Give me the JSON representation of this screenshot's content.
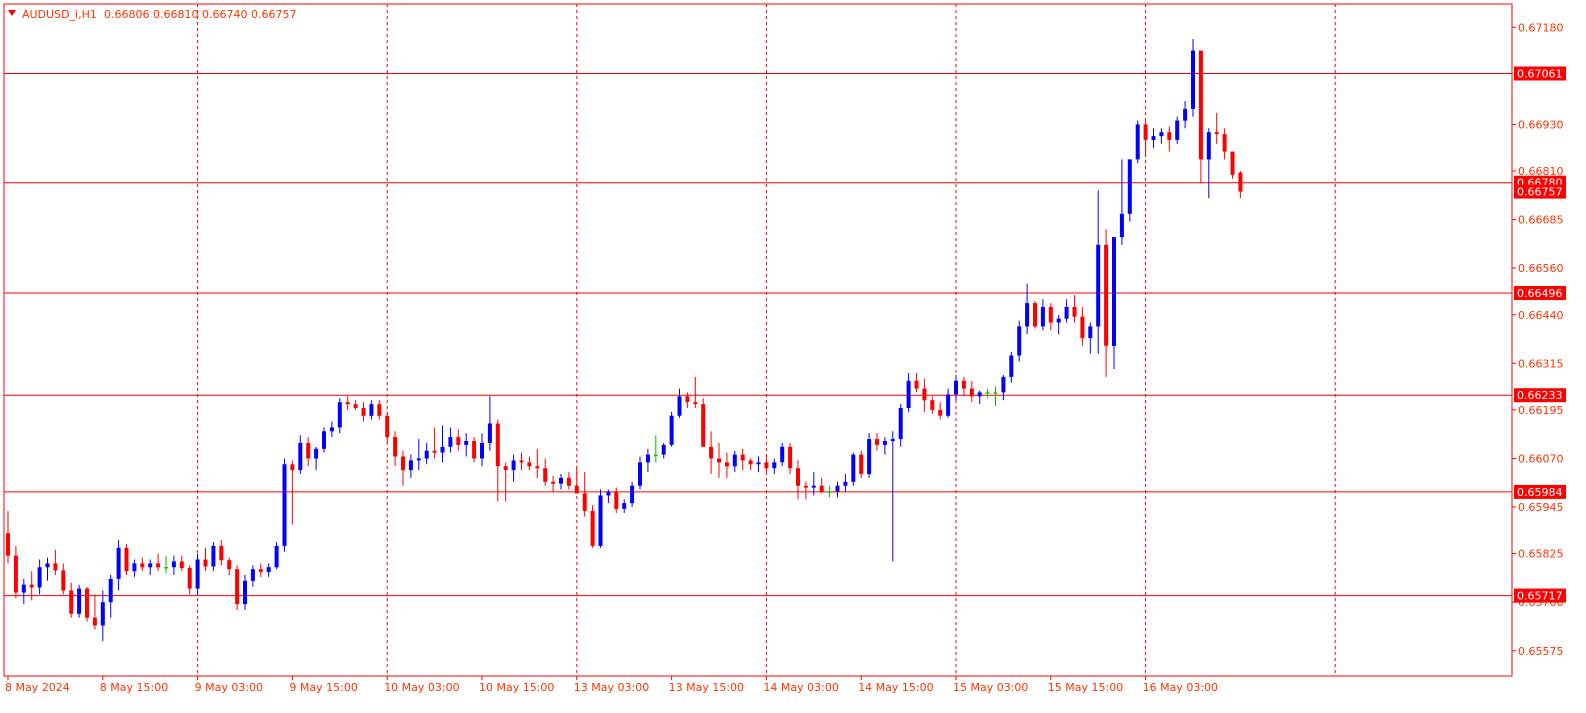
{
  "header": {
    "symbol": "AUDUSD_i,H1",
    "ohlc": "0.66806 0.66810 0.66740 0.66757"
  },
  "colors": {
    "background": "#ffffff",
    "frame": "#ff0000",
    "grid": "#ff0000",
    "level_line": "#ff0000",
    "level_label_bg": "#ff0000",
    "level_label_text": "#ffffff",
    "bull": "#0000ff",
    "bear": "#ff0000",
    "neutral": "#00c000",
    "axis_text": "#ff3300"
  },
  "chart_data": {
    "type": "candlestick",
    "timeframe": "H1",
    "y_range": [
      0.6551,
      0.6724
    ],
    "y_ticks": [
      "0.67180",
      "0.66930",
      "0.66810",
      "0.66685",
      "0.66560",
      "0.66440",
      "0.66315",
      "0.66195",
      "0.66070",
      "0.65945",
      "0.65825",
      "0.65700",
      "0.65575"
    ],
    "x_labels": [
      "8 May 2024",
      "8 May 15:00",
      "9 May 03:00",
      "9 May 15:00",
      "10 May 03:00",
      "10 May 15:00",
      "13 May 03:00",
      "13 May 15:00",
      "14 May 03:00",
      "14 May 15:00",
      "15 May 03:00",
      "15 May 15:00",
      "16 May 03:00"
    ],
    "vertical_grid": "dashed, every 24 bars",
    "horizontal_levels": [
      "0.67061",
      "0.66780",
      "0.66496",
      "0.66233",
      "0.65984",
      "0.65717"
    ],
    "current_price": "0.66757",
    "candles": [
      {
        "o": 0.65878,
        "h": 0.65935,
        "l": 0.658,
        "c": 0.6582
      },
      {
        "o": 0.6582,
        "h": 0.65845,
        "l": 0.6571,
        "c": 0.65725
      },
      {
        "o": 0.65725,
        "h": 0.6576,
        "l": 0.65695,
        "c": 0.65745
      },
      {
        "o": 0.65745,
        "h": 0.6578,
        "l": 0.65705,
        "c": 0.65738
      },
      {
        "o": 0.65738,
        "h": 0.6581,
        "l": 0.6572,
        "c": 0.6579
      },
      {
        "o": 0.6579,
        "h": 0.65815,
        "l": 0.65755,
        "c": 0.658
      },
      {
        "o": 0.658,
        "h": 0.65835,
        "l": 0.6577,
        "c": 0.65782
      },
      {
        "o": 0.65782,
        "h": 0.658,
        "l": 0.6572,
        "c": 0.6573
      },
      {
        "o": 0.6573,
        "h": 0.6575,
        "l": 0.6566,
        "c": 0.6567
      },
      {
        "o": 0.6567,
        "h": 0.65745,
        "l": 0.6566,
        "c": 0.65735
      },
      {
        "o": 0.65735,
        "h": 0.6574,
        "l": 0.6565,
        "c": 0.6566
      },
      {
        "o": 0.6566,
        "h": 0.6572,
        "l": 0.6563,
        "c": 0.6564
      },
      {
        "o": 0.6564,
        "h": 0.6573,
        "l": 0.656,
        "c": 0.657
      },
      {
        "o": 0.657,
        "h": 0.6577,
        "l": 0.6566,
        "c": 0.6576
      },
      {
        "o": 0.6576,
        "h": 0.6586,
        "l": 0.6573,
        "c": 0.6584
      },
      {
        "o": 0.6584,
        "h": 0.6585,
        "l": 0.6577,
        "c": 0.6578
      },
      {
        "o": 0.6578,
        "h": 0.6581,
        "l": 0.65765,
        "c": 0.658
      },
      {
        "o": 0.658,
        "h": 0.65815,
        "l": 0.6578,
        "c": 0.6579
      },
      {
        "o": 0.6579,
        "h": 0.6581,
        "l": 0.6577,
        "c": 0.658
      },
      {
        "o": 0.658,
        "h": 0.65825,
        "l": 0.6578,
        "c": 0.6579
      },
      {
        "o": 0.6579,
        "h": 0.6582,
        "l": 0.65775,
        "c": 0.6579
      },
      {
        "o": 0.6579,
        "h": 0.6582,
        "l": 0.6577,
        "c": 0.65805
      },
      {
        "o": 0.65805,
        "h": 0.6582,
        "l": 0.6578,
        "c": 0.65788
      },
      {
        "o": 0.65788,
        "h": 0.65795,
        "l": 0.6572,
        "c": 0.65735
      },
      {
        "o": 0.65735,
        "h": 0.65825,
        "l": 0.6572,
        "c": 0.6581
      },
      {
        "o": 0.6581,
        "h": 0.6584,
        "l": 0.6578,
        "c": 0.65792
      },
      {
        "o": 0.65792,
        "h": 0.65855,
        "l": 0.6578,
        "c": 0.65845
      },
      {
        "o": 0.65845,
        "h": 0.6586,
        "l": 0.65795,
        "c": 0.65808
      },
      {
        "o": 0.65808,
        "h": 0.65815,
        "l": 0.6577,
        "c": 0.65785
      },
      {
        "o": 0.65785,
        "h": 0.65795,
        "l": 0.6568,
        "c": 0.65695
      },
      {
        "o": 0.65695,
        "h": 0.6577,
        "l": 0.6568,
        "c": 0.65755
      },
      {
        "o": 0.65755,
        "h": 0.65795,
        "l": 0.6574,
        "c": 0.65785
      },
      {
        "o": 0.65785,
        "h": 0.658,
        "l": 0.65765,
        "c": 0.65778
      },
      {
        "o": 0.65778,
        "h": 0.658,
        "l": 0.65765,
        "c": 0.6579
      },
      {
        "o": 0.6579,
        "h": 0.65855,
        "l": 0.65785,
        "c": 0.65845
      },
      {
        "o": 0.65845,
        "h": 0.6607,
        "l": 0.6583,
        "c": 0.66055
      },
      {
        "o": 0.66055,
        "h": 0.66065,
        "l": 0.659,
        "c": 0.6604
      },
      {
        "o": 0.6604,
        "h": 0.6613,
        "l": 0.6603,
        "c": 0.6611
      },
      {
        "o": 0.6611,
        "h": 0.66125,
        "l": 0.6605,
        "c": 0.6607
      },
      {
        "o": 0.6607,
        "h": 0.661,
        "l": 0.6604,
        "c": 0.66095
      },
      {
        "o": 0.66095,
        "h": 0.6615,
        "l": 0.66085,
        "c": 0.6614
      },
      {
        "o": 0.6614,
        "h": 0.66165,
        "l": 0.66125,
        "c": 0.6615
      },
      {
        "o": 0.6615,
        "h": 0.66225,
        "l": 0.66135,
        "c": 0.66215
      },
      {
        "o": 0.66215,
        "h": 0.6623,
        "l": 0.66195,
        "c": 0.6621
      },
      {
        "o": 0.6621,
        "h": 0.6622,
        "l": 0.66195,
        "c": 0.662
      },
      {
        "o": 0.662,
        "h": 0.66215,
        "l": 0.66165,
        "c": 0.6618
      },
      {
        "o": 0.6618,
        "h": 0.6622,
        "l": 0.6617,
        "c": 0.6621
      },
      {
        "o": 0.6621,
        "h": 0.6622,
        "l": 0.6617,
        "c": 0.6618
      },
      {
        "o": 0.6618,
        "h": 0.6619,
        "l": 0.6611,
        "c": 0.66125
      },
      {
        "o": 0.66125,
        "h": 0.6614,
        "l": 0.6605,
        "c": 0.66075
      },
      {
        "o": 0.66075,
        "h": 0.6609,
        "l": 0.66,
        "c": 0.6604
      },
      {
        "o": 0.6604,
        "h": 0.6608,
        "l": 0.6602,
        "c": 0.66065
      },
      {
        "o": 0.66065,
        "h": 0.6612,
        "l": 0.6604,
        "c": 0.6607
      },
      {
        "o": 0.6607,
        "h": 0.6611,
        "l": 0.66055,
        "c": 0.6609
      },
      {
        "o": 0.6609,
        "h": 0.6615,
        "l": 0.6607,
        "c": 0.66085
      },
      {
        "o": 0.66085,
        "h": 0.66155,
        "l": 0.6606,
        "c": 0.661
      },
      {
        "o": 0.661,
        "h": 0.6615,
        "l": 0.66085,
        "c": 0.66125
      },
      {
        "o": 0.66125,
        "h": 0.66145,
        "l": 0.6609,
        "c": 0.66105
      },
      {
        "o": 0.66105,
        "h": 0.66135,
        "l": 0.66075,
        "c": 0.66115
      },
      {
        "o": 0.66115,
        "h": 0.66125,
        "l": 0.6606,
        "c": 0.6607
      },
      {
        "o": 0.6607,
        "h": 0.66135,
        "l": 0.6605,
        "c": 0.6611
      },
      {
        "o": 0.6611,
        "h": 0.6623,
        "l": 0.6609,
        "c": 0.6616
      },
      {
        "o": 0.6616,
        "h": 0.6617,
        "l": 0.6596,
        "c": 0.6605
      },
      {
        "o": 0.6605,
        "h": 0.6606,
        "l": 0.6596,
        "c": 0.6604
      },
      {
        "o": 0.6604,
        "h": 0.6608,
        "l": 0.6601,
        "c": 0.66065
      },
      {
        "o": 0.66065,
        "h": 0.66085,
        "l": 0.6604,
        "c": 0.6606
      },
      {
        "o": 0.6606,
        "h": 0.66075,
        "l": 0.6604,
        "c": 0.6605
      },
      {
        "o": 0.6605,
        "h": 0.66095,
        "l": 0.6602,
        "c": 0.66045
      },
      {
        "o": 0.66045,
        "h": 0.6607,
        "l": 0.66,
        "c": 0.6601
      },
      {
        "o": 0.6601,
        "h": 0.66025,
        "l": 0.65985,
        "c": 0.66005
      },
      {
        "o": 0.66005,
        "h": 0.6603,
        "l": 0.6599,
        "c": 0.6602
      },
      {
        "o": 0.6602,
        "h": 0.66035,
        "l": 0.6599,
        "c": 0.66
      },
      {
        "o": 0.66,
        "h": 0.6605,
        "l": 0.6599,
        "c": 0.6598
      },
      {
        "o": 0.6598,
        "h": 0.66035,
        "l": 0.6592,
        "c": 0.65935
      },
      {
        "o": 0.65935,
        "h": 0.6595,
        "l": 0.6584,
        "c": 0.65845
      },
      {
        "o": 0.65845,
        "h": 0.6599,
        "l": 0.6584,
        "c": 0.65975
      },
      {
        "o": 0.65975,
        "h": 0.6599,
        "l": 0.65955,
        "c": 0.65985
      },
      {
        "o": 0.65985,
        "h": 0.65995,
        "l": 0.6593,
        "c": 0.6594
      },
      {
        "o": 0.6594,
        "h": 0.65965,
        "l": 0.6593,
        "c": 0.65955
      },
      {
        "o": 0.65955,
        "h": 0.6601,
        "l": 0.65945,
        "c": 0.66
      },
      {
        "o": 0.66,
        "h": 0.66075,
        "l": 0.6599,
        "c": 0.6606
      },
      {
        "o": 0.6606,
        "h": 0.66095,
        "l": 0.66035,
        "c": 0.6608
      },
      {
        "o": 0.6608,
        "h": 0.6613,
        "l": 0.6606,
        "c": 0.6608
      },
      {
        "o": 0.6608,
        "h": 0.6611,
        "l": 0.6607,
        "c": 0.66105
      },
      {
        "o": 0.66105,
        "h": 0.6619,
        "l": 0.661,
        "c": 0.6618
      },
      {
        "o": 0.6618,
        "h": 0.6625,
        "l": 0.66175,
        "c": 0.6623
      },
      {
        "o": 0.6623,
        "h": 0.6624,
        "l": 0.662,
        "c": 0.66215
      },
      {
        "o": 0.66215,
        "h": 0.6628,
        "l": 0.662,
        "c": 0.6621
      },
      {
        "o": 0.6621,
        "h": 0.66225,
        "l": 0.6611,
        "c": 0.661
      },
      {
        "o": 0.661,
        "h": 0.6614,
        "l": 0.6603,
        "c": 0.6607
      },
      {
        "o": 0.6607,
        "h": 0.6611,
        "l": 0.6602,
        "c": 0.6606
      },
      {
        "o": 0.6606,
        "h": 0.66085,
        "l": 0.6602,
        "c": 0.6605
      },
      {
        "o": 0.6605,
        "h": 0.6609,
        "l": 0.66035,
        "c": 0.6608
      },
      {
        "o": 0.6608,
        "h": 0.66095,
        "l": 0.6604,
        "c": 0.66065
      },
      {
        "o": 0.66065,
        "h": 0.6607,
        "l": 0.6604,
        "c": 0.66055
      },
      {
        "o": 0.66055,
        "h": 0.66075,
        "l": 0.66035,
        "c": 0.6606
      },
      {
        "o": 0.6606,
        "h": 0.6608,
        "l": 0.66035,
        "c": 0.66045
      },
      {
        "o": 0.66045,
        "h": 0.6607,
        "l": 0.6603,
        "c": 0.6606
      },
      {
        "o": 0.6606,
        "h": 0.6611,
        "l": 0.6605,
        "c": 0.661
      },
      {
        "o": 0.661,
        "h": 0.6611,
        "l": 0.6603,
        "c": 0.66045
      },
      {
        "o": 0.66045,
        "h": 0.66065,
        "l": 0.65965,
        "c": 0.66
      },
      {
        "o": 0.66,
        "h": 0.6601,
        "l": 0.65965,
        "c": 0.65995
      },
      {
        "o": 0.65995,
        "h": 0.66035,
        "l": 0.65975,
        "c": 0.66
      },
      {
        "o": 0.66,
        "h": 0.6602,
        "l": 0.6598,
        "c": 0.65985
      },
      {
        "o": 0.65985,
        "h": 0.66,
        "l": 0.6597,
        "c": 0.65985
      },
      {
        "o": 0.65985,
        "h": 0.6601,
        "l": 0.6597,
        "c": 0.66
      },
      {
        "o": 0.66,
        "h": 0.6603,
        "l": 0.65985,
        "c": 0.6601
      },
      {
        "o": 0.6601,
        "h": 0.66085,
        "l": 0.66,
        "c": 0.6608
      },
      {
        "o": 0.6608,
        "h": 0.6609,
        "l": 0.6602,
        "c": 0.6603
      },
      {
        "o": 0.6603,
        "h": 0.66135,
        "l": 0.6602,
        "c": 0.6612
      },
      {
        "o": 0.6612,
        "h": 0.66135,
        "l": 0.6609,
        "c": 0.66105
      },
      {
        "o": 0.66105,
        "h": 0.66125,
        "l": 0.6608,
        "c": 0.66115
      },
      {
        "o": 0.66115,
        "h": 0.6614,
        "l": 0.65805,
        "c": 0.6612
      },
      {
        "o": 0.6612,
        "h": 0.6621,
        "l": 0.661,
        "c": 0.662
      },
      {
        "o": 0.662,
        "h": 0.6629,
        "l": 0.6619,
        "c": 0.6627
      },
      {
        "o": 0.6627,
        "h": 0.6629,
        "l": 0.6624,
        "c": 0.6625
      },
      {
        "o": 0.6625,
        "h": 0.66275,
        "l": 0.6619,
        "c": 0.6622
      },
      {
        "o": 0.6622,
        "h": 0.6623,
        "l": 0.66185,
        "c": 0.66195
      },
      {
        "o": 0.66195,
        "h": 0.66215,
        "l": 0.6617,
        "c": 0.6618
      },
      {
        "o": 0.6618,
        "h": 0.6625,
        "l": 0.66175,
        "c": 0.66235
      },
      {
        "o": 0.66235,
        "h": 0.66285,
        "l": 0.6622,
        "c": 0.6627
      },
      {
        "o": 0.6627,
        "h": 0.6628,
        "l": 0.6623,
        "c": 0.6625
      },
      {
        "o": 0.6625,
        "h": 0.6627,
        "l": 0.66215,
        "c": 0.6623
      },
      {
        "o": 0.6623,
        "h": 0.66245,
        "l": 0.6621,
        "c": 0.6624
      },
      {
        "o": 0.6624,
        "h": 0.6625,
        "l": 0.66225,
        "c": 0.6624
      },
      {
        "o": 0.6624,
        "h": 0.66255,
        "l": 0.66205,
        "c": 0.6624
      },
      {
        "o": 0.6624,
        "h": 0.66285,
        "l": 0.6622,
        "c": 0.6628
      },
      {
        "o": 0.6628,
        "h": 0.66345,
        "l": 0.66265,
        "c": 0.66335
      },
      {
        "o": 0.66335,
        "h": 0.66425,
        "l": 0.6632,
        "c": 0.6641
      },
      {
        "o": 0.6641,
        "h": 0.6652,
        "l": 0.6639,
        "c": 0.6647
      },
      {
        "o": 0.6647,
        "h": 0.66475,
        "l": 0.66405,
        "c": 0.6641
      },
      {
        "o": 0.6641,
        "h": 0.6648,
        "l": 0.664,
        "c": 0.6646
      },
      {
        "o": 0.6646,
        "h": 0.6647,
        "l": 0.664,
        "c": 0.6642
      },
      {
        "o": 0.6642,
        "h": 0.6644,
        "l": 0.6639,
        "c": 0.6643
      },
      {
        "o": 0.6643,
        "h": 0.6648,
        "l": 0.6642,
        "c": 0.6646
      },
      {
        "o": 0.6646,
        "h": 0.6649,
        "l": 0.6642,
        "c": 0.66435
      },
      {
        "o": 0.66435,
        "h": 0.6646,
        "l": 0.6636,
        "c": 0.6638
      },
      {
        "o": 0.6638,
        "h": 0.6642,
        "l": 0.6634,
        "c": 0.6641
      },
      {
        "o": 0.6641,
        "h": 0.6676,
        "l": 0.6634,
        "c": 0.6662
      },
      {
        "o": 0.6662,
        "h": 0.6666,
        "l": 0.6628,
        "c": 0.6636
      },
      {
        "o": 0.6636,
        "h": 0.6664,
        "l": 0.663,
        "c": 0.6664
      },
      {
        "o": 0.6664,
        "h": 0.6684,
        "l": 0.6662,
        "c": 0.667
      },
      {
        "o": 0.667,
        "h": 0.6684,
        "l": 0.6668,
        "c": 0.6684
      },
      {
        "o": 0.6684,
        "h": 0.6694,
        "l": 0.6683,
        "c": 0.6693
      },
      {
        "o": 0.6693,
        "h": 0.6694,
        "l": 0.6685,
        "c": 0.6689
      },
      {
        "o": 0.6689,
        "h": 0.6692,
        "l": 0.6687,
        "c": 0.669
      },
      {
        "o": 0.669,
        "h": 0.6692,
        "l": 0.6688,
        "c": 0.6691
      },
      {
        "o": 0.6691,
        "h": 0.66925,
        "l": 0.6686,
        "c": 0.6689
      },
      {
        "o": 0.6689,
        "h": 0.6695,
        "l": 0.6688,
        "c": 0.6694
      },
      {
        "o": 0.6694,
        "h": 0.6699,
        "l": 0.6692,
        "c": 0.6697
      },
      {
        "o": 0.6697,
        "h": 0.6715,
        "l": 0.6695,
        "c": 0.6712
      },
      {
        "o": 0.6712,
        "h": 0.6712,
        "l": 0.6678,
        "c": 0.6684
      },
      {
        "o": 0.6684,
        "h": 0.6692,
        "l": 0.6674,
        "c": 0.6691
      },
      {
        "o": 0.6691,
        "h": 0.6696,
        "l": 0.6688,
        "c": 0.66905
      },
      {
        "o": 0.66905,
        "h": 0.6692,
        "l": 0.6684,
        "c": 0.6686
      },
      {
        "o": 0.6686,
        "h": 0.6686,
        "l": 0.6679,
        "c": 0.668
      },
      {
        "o": 0.66806,
        "h": 0.6681,
        "l": 0.6674,
        "c": 0.66757
      }
    ]
  }
}
